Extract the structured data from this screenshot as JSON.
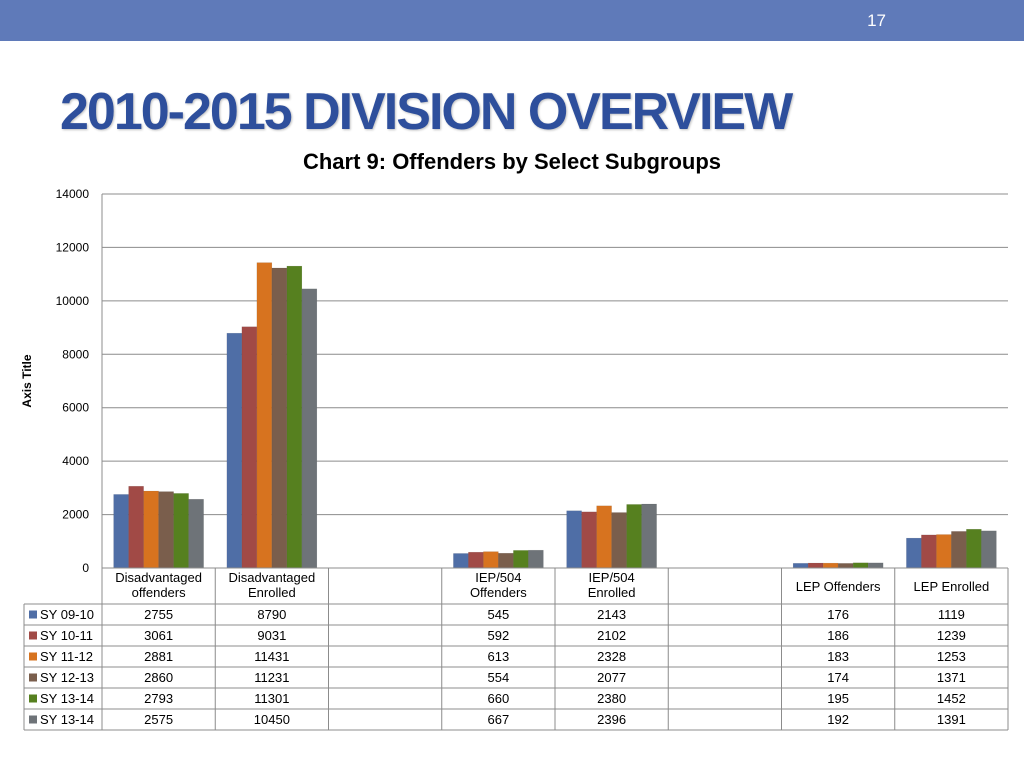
{
  "page": {
    "number": "17",
    "title": "2010-2015 DIVISION OVERVIEW"
  },
  "chart_data": {
    "type": "bar",
    "title": "Chart 9:  Offenders by Select Subgroups",
    "ylabel": "Axis Title",
    "xlabel": "",
    "ylim": [
      0,
      14000
    ],
    "yticks": [
      0,
      2000,
      4000,
      6000,
      8000,
      10000,
      12000,
      14000
    ],
    "grid": true,
    "legend": "data-table-left",
    "categories": [
      [
        "Disadvantaged",
        "offenders"
      ],
      [
        "Disadvantaged",
        "Enrolled"
      ],
      [],
      [
        "IEP/504",
        "Offenders"
      ],
      [
        "IEP/504",
        "Enrolled"
      ],
      [],
      [
        "LEP Offenders"
      ],
      [
        "LEP Enrolled"
      ]
    ],
    "series": [
      {
        "name": "SY 09-10",
        "color": "#4F6EA6",
        "values": [
          2755,
          8790,
          null,
          545,
          2143,
          null,
          176,
          1119
        ]
      },
      {
        "name": "SY 10-11",
        "color": "#A14A46",
        "values": [
          3061,
          9031,
          null,
          592,
          2102,
          null,
          186,
          1239
        ]
      },
      {
        "name": "SY 11-12",
        "color": "#D7731F",
        "values": [
          2881,
          11431,
          null,
          613,
          2328,
          null,
          183,
          1253
        ]
      },
      {
        "name": "SY 12-13",
        "color": "#7A5E4C",
        "values": [
          2860,
          11231,
          null,
          554,
          2077,
          null,
          174,
          1371
        ]
      },
      {
        "name": "SY 13-14",
        "color": "#56801F",
        "values": [
          2793,
          11301,
          null,
          660,
          2380,
          null,
          195,
          1452
        ]
      },
      {
        "name": "SY 13-14",
        "color": "#6E7378",
        "values": [
          2575,
          10450,
          null,
          667,
          2396,
          null,
          192,
          1391
        ]
      }
    ]
  }
}
